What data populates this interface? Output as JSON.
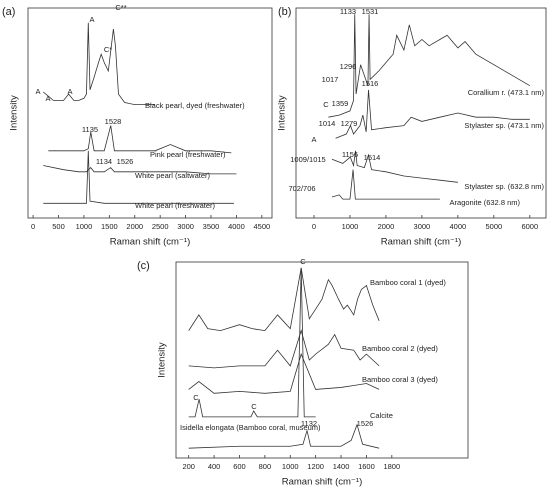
{
  "chart_data": [
    {
      "type": "line",
      "panel_label": "(a)",
      "x_label": "Raman shift (cm⁻¹)",
      "y_label": "Intensity",
      "xlim": [
        -100,
        4700
      ],
      "ylim": [
        0,
        100
      ],
      "xticks": [
        0,
        500,
        1000,
        1500,
        2000,
        2500,
        3000,
        3500,
        4000,
        4500
      ],
      "series": [
        {
          "name": "Black pearl, dyed (freshwater)",
          "color": "#333333",
          "x": [
            200,
            300,
            400,
            500,
            600,
            700,
            800,
            900,
            1000,
            1050,
            1086,
            1120,
            1200,
            1300,
            1340,
            1400,
            1480,
            1530,
            1580,
            1620,
            1680,
            1800,
            2000,
            2200,
            2400
          ],
          "values": [
            60,
            58,
            56,
            56,
            56,
            59,
            56,
            56,
            57,
            59,
            93,
            61,
            67,
            75,
            78,
            74,
            70,
            80,
            90,
            82,
            59,
            55,
            54,
            54,
            54
          ]
        },
        {
          "name": "Pink pearl (freshwater)",
          "color": "#333333",
          "x": [
            300,
            600,
            900,
            1000,
            1086,
            1135,
            1200,
            1400,
            1528,
            1600,
            2000,
            2400,
            2700,
            3000,
            3500,
            3900
          ],
          "values": [
            32,
            32,
            32,
            32,
            33,
            41,
            32,
            32,
            44,
            32,
            32,
            32,
            35,
            32,
            32,
            31
          ]
        },
        {
          "name": "White pearl (saltwater)",
          "color": "#333333",
          "x": [
            200,
            600,
            900,
            1050,
            1086,
            1134,
            1200,
            1400,
            1526,
            1600,
            2000,
            2500,
            3000,
            3500,
            4000
          ],
          "values": [
            25,
            23,
            22,
            22,
            23,
            24,
            22,
            22,
            24,
            22,
            22,
            22,
            22,
            21,
            21
          ]
        },
        {
          "name": "White pearl (freshwater)",
          "color": "#333333",
          "x": [
            200,
            600,
            900,
            1050,
            1086,
            1120,
            1400,
            2000,
            2500,
            3000,
            3500,
            3950
          ],
          "values": [
            7,
            7,
            7,
            7,
            32,
            8,
            7,
            7,
            7,
            7,
            7,
            7
          ]
        }
      ],
      "annotations": [
        "A",
        "A",
        "A",
        "A",
        "C*",
        "C**",
        "1135",
        "1528",
        "1134",
        "1526"
      ]
    },
    {
      "type": "line",
      "panel_label": "(b)",
      "x_label": "Raman shift (cm⁻¹)",
      "y_label": "Intensity",
      "xlim": [
        -500,
        6450
      ],
      "ylim": [
        0,
        100
      ],
      "xticks": [
        0,
        1000,
        2000,
        3000,
        4000,
        5000,
        6000
      ],
      "series": [
        {
          "name": "Corallium r. (473.1 nm)",
          "color": "#333333",
          "x": [
            400,
            700,
            1000,
            1100,
            1133,
            1170,
            1296,
            1500,
            1531,
            1560,
            1800,
            2000,
            2200,
            2300,
            2500,
            2650,
            2800,
            3000,
            3200,
            3500,
            3700,
            4000,
            4200,
            4500,
            5000,
            5500,
            6000
          ],
          "values": [
            48,
            49,
            51,
            56,
            97,
            59,
            73,
            63,
            97,
            66,
            70,
            74,
            78,
            87,
            80,
            92,
            82,
            85,
            82,
            85,
            87,
            81,
            84,
            78,
            73,
            68,
            63
          ]
        },
        {
          "name": "Stylaster sp. (473.1 nm)",
          "color": "#333333",
          "x": [
            600,
            900,
            1014,
            1100,
            1279,
            1359,
            1450,
            1516,
            1600,
            2000,
            2500,
            2700,
            3000,
            3500,
            4000,
            4500,
            5000,
            5500,
            6000
          ],
          "values": [
            38,
            40,
            44,
            40,
            44,
            49,
            41,
            61,
            42,
            43,
            44,
            48,
            46,
            48,
            50,
            48,
            48,
            47,
            47
          ]
        },
        {
          "name": "Stylaster sp. (632.8 nm)",
          "color": "#333333",
          "x": [
            500,
            800,
            1009,
            1100,
            1156,
            1200,
            1400,
            1514,
            1600,
            2000,
            2500,
            3000,
            3500,
            4000
          ],
          "values": [
            28,
            26,
            29,
            25,
            32,
            25,
            24,
            30,
            23,
            22,
            20,
            19,
            18,
            17
          ]
        },
        {
          "name": "Aragonite (632.8 nm)",
          "color": "#333333",
          "x": [
            500,
            702,
            800,
            1000,
            1086,
            1150,
            1300,
            1500,
            2000,
            2500,
            3000,
            3500
          ],
          "values": [
            10,
            11,
            9,
            9,
            23,
            9,
            9,
            9,
            9,
            9,
            9,
            9
          ]
        }
      ],
      "annotations": [
        "1133",
        "1531",
        "1296",
        "1017",
        "1516",
        "1359",
        "C",
        "1014",
        "1279",
        "A",
        "1009/1015",
        "1156",
        "1514",
        "702/706"
      ]
    },
    {
      "type": "line",
      "panel_label": "(c)",
      "x_label": "Raman shift (cm⁻¹)",
      "y_label": "Intensity",
      "xlim": [
        100,
        2400
      ],
      "ylim": [
        0,
        100
      ],
      "xticks": [
        200,
        400,
        600,
        800,
        1000,
        1200,
        1400,
        1600,
        1800
      ],
      "series": [
        {
          "name": "Bamboo coral 1 (dyed)",
          "color": "#333333",
          "x": [
            200,
            280,
            350,
            450,
            600,
            700,
            800,
            900,
            1000,
            1086,
            1150,
            1200,
            1250,
            1300,
            1330,
            1380,
            1420,
            1450,
            1500,
            1530,
            1560,
            1600,
            1650,
            1700
          ],
          "values": [
            65,
            73,
            66,
            65,
            68,
            66,
            65,
            73,
            66,
            97,
            71,
            76,
            81,
            91,
            88,
            81,
            76,
            78,
            73,
            81,
            86,
            88,
            78,
            70
          ]
        },
        {
          "name": "Bamboo coral 2 (dyed)",
          "color": "#333333",
          "x": [
            200,
            400,
            600,
            800,
            900,
            1000,
            1086,
            1150,
            1200,
            1300,
            1350,
            1400,
            1500,
            1550,
            1600,
            1700
          ],
          "values": [
            47,
            46,
            47,
            47,
            55,
            47,
            65,
            50,
            53,
            58,
            63,
            56,
            55,
            50,
            53,
            47
          ]
        },
        {
          "name": "Bamboo coral 3 (dyed)",
          "color": "#333333",
          "x": [
            200,
            280,
            400,
            600,
            800,
            1000,
            1086,
            1200,
            1400,
            1500,
            1600,
            1700
          ],
          "values": [
            35,
            39,
            33,
            34,
            33,
            34,
            53,
            35,
            36,
            37,
            38,
            35
          ]
        },
        {
          "name": "Calcite",
          "color": "#333333",
          "x": [
            200,
            250,
            282,
            310,
            500,
            690,
            712,
            740,
            1000,
            1060,
            1086,
            1110,
            1200
          ],
          "values": [
            21,
            21,
            30,
            21,
            21,
            21,
            24,
            21,
            21,
            21,
            97,
            21,
            21
          ]
        },
        {
          "name": "Isidella elongata (Bamboo coral, museum)",
          "color": "#333333",
          "x": [
            200,
            600,
            1000,
            1100,
            1132,
            1160,
            1400,
            1480,
            1526,
            1570,
            1700
          ],
          "values": [
            5,
            6,
            6,
            7,
            14,
            6,
            6,
            9,
            17,
            7,
            5
          ]
        }
      ],
      "annotations": [
        "C",
        "C",
        "C",
        "1132",
        "1526"
      ]
    }
  ]
}
